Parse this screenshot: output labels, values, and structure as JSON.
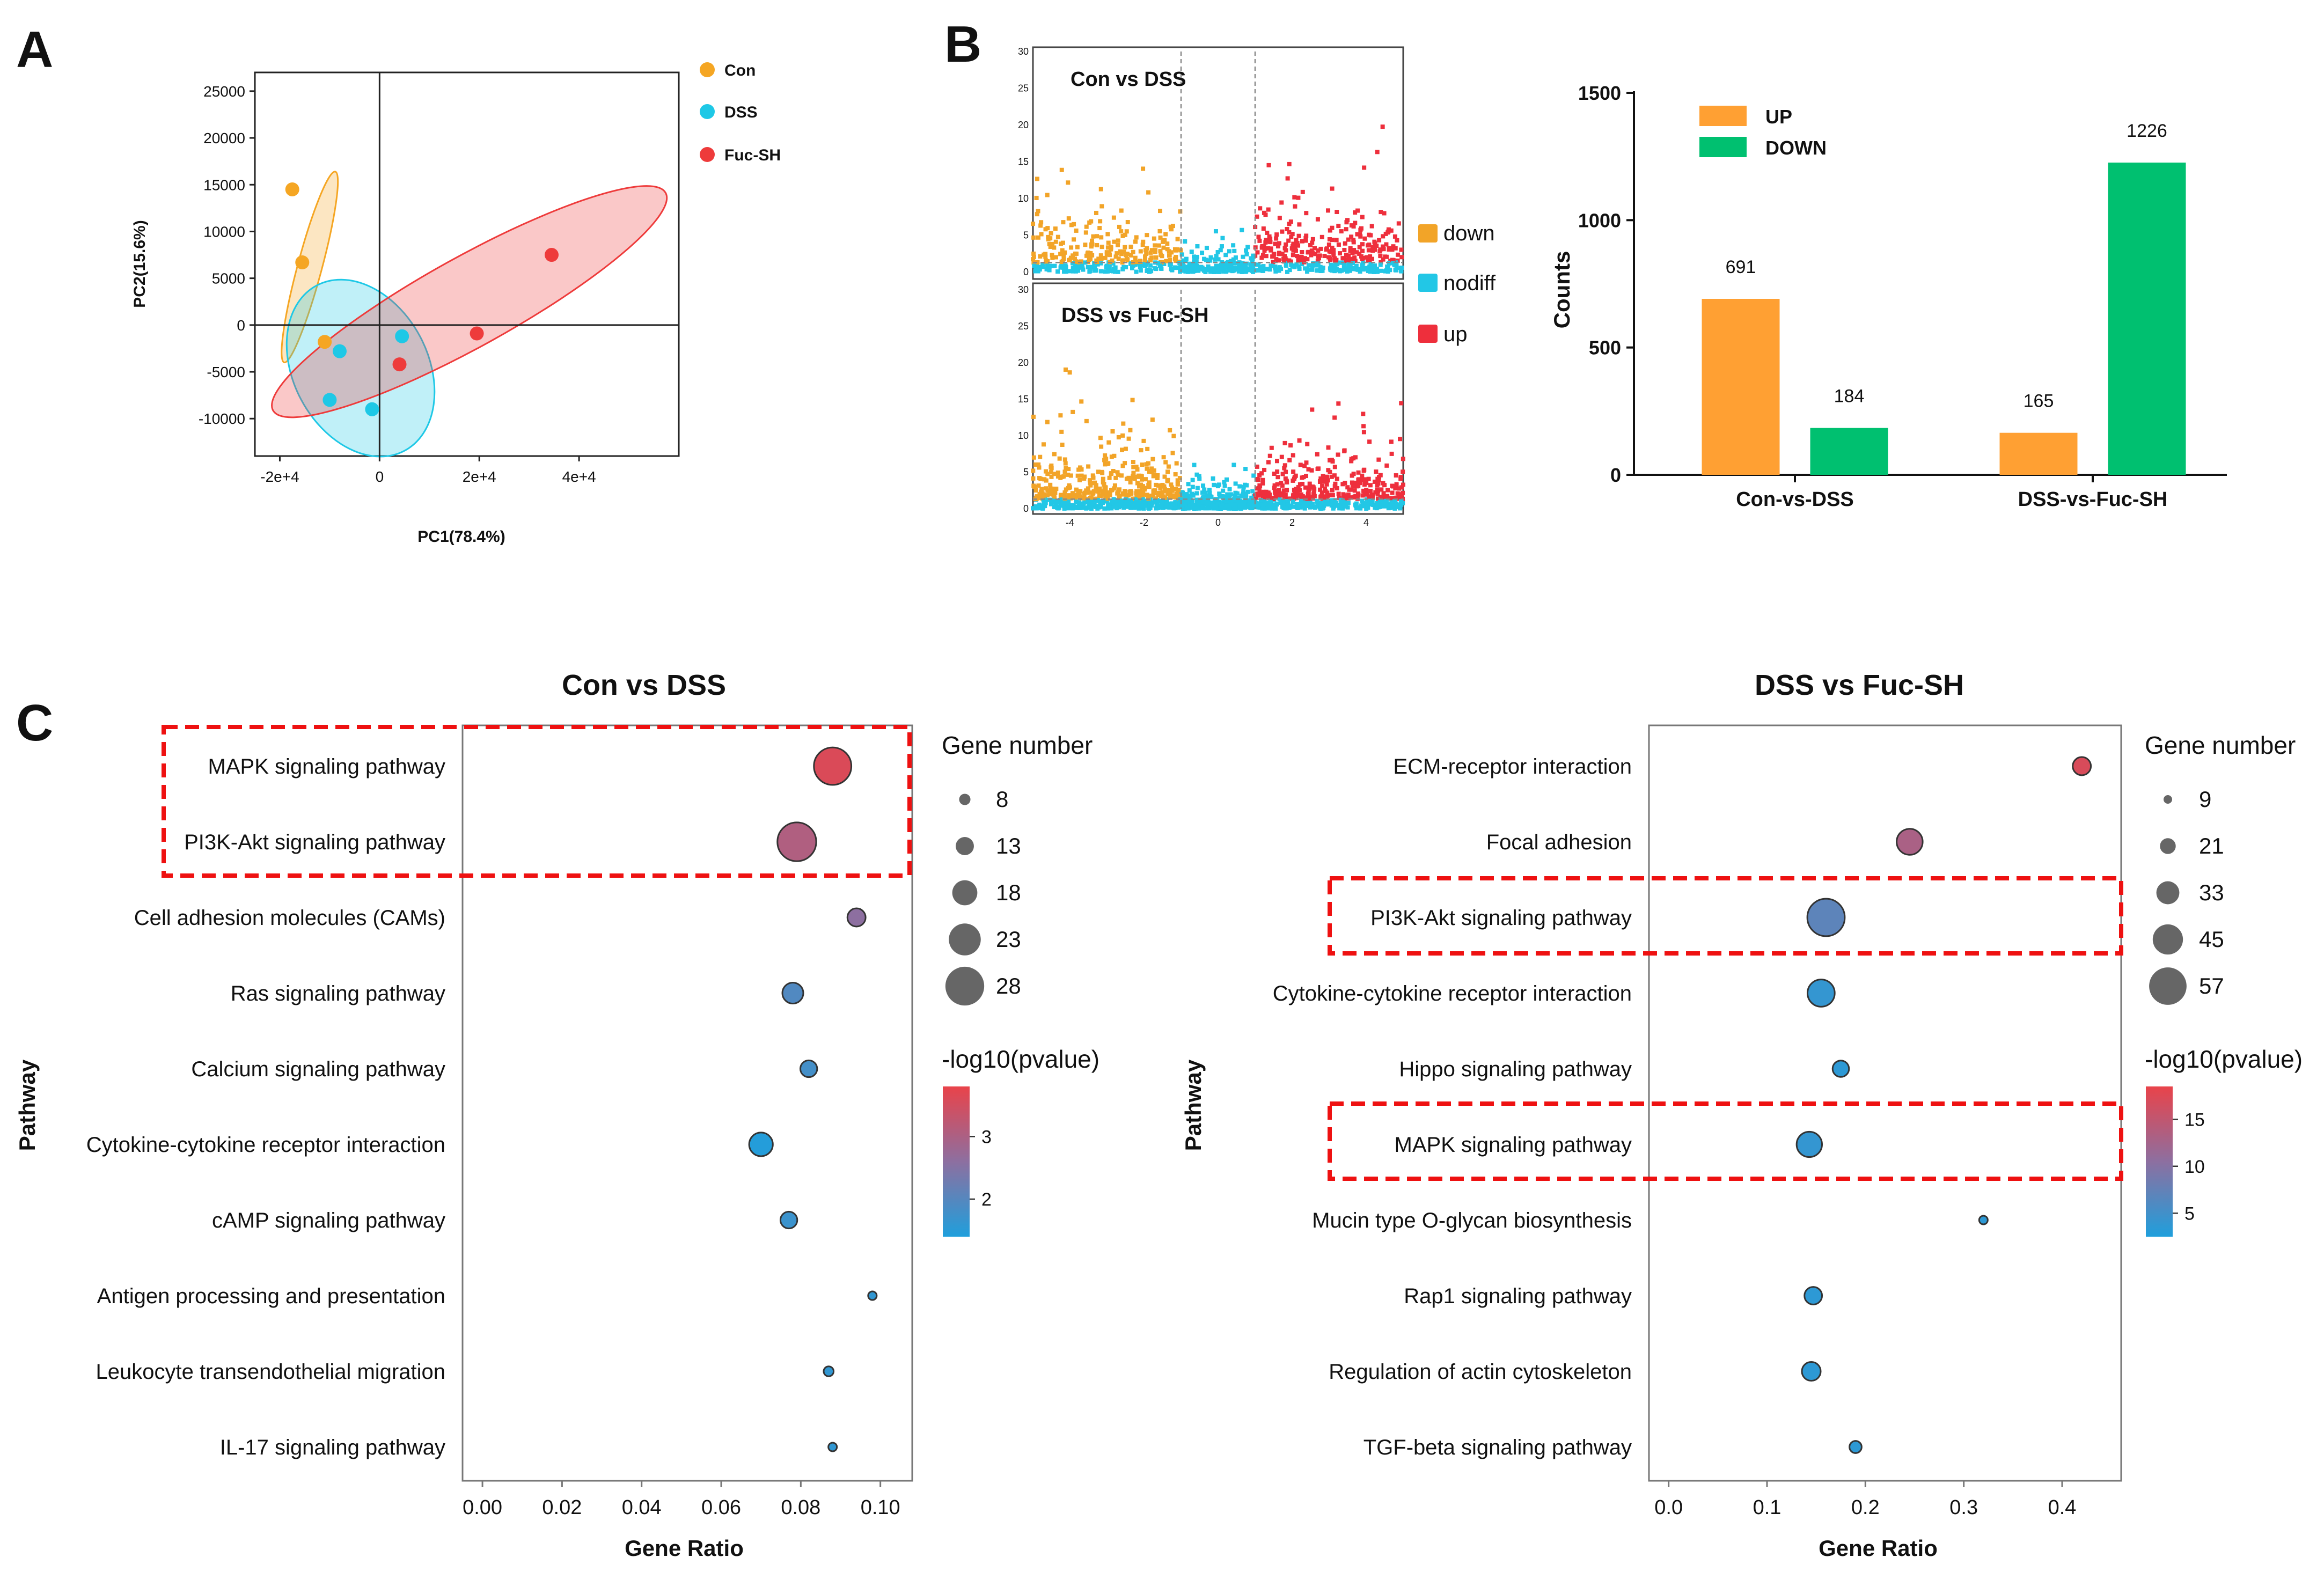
{
  "panel_labels": [
    "A",
    "B",
    "C"
  ],
  "colors": {
    "con": "#f5a623",
    "dss": "#1ec8e6",
    "fuc": "#ee3b3b",
    "up_bar": "#ffa033",
    "down_bar": "#00c070",
    "v_down": "#f2a428",
    "v_nodiff": "#22c7e6",
    "v_up": "#ee2f3c",
    "grad_high": "#e9434a",
    "grad_low": "#1f9fdc",
    "dashed_box": "#ee1111"
  },
  "chart_data": [
    {
      "id": "pca",
      "type": "scatter",
      "xlabel": "PC1(78.4%)",
      "ylabel": "PC2(15.6%)",
      "xlim": [
        -25000,
        60000
      ],
      "ylim": [
        -14000,
        27000
      ],
      "x_ticks": [
        -20000,
        0,
        20000,
        40000
      ],
      "x_tick_labels": [
        "-2e+4",
        "0",
        "2e+4",
        "4e+4"
      ],
      "y_ticks": [
        -10000,
        -5000,
        0,
        5000,
        10000,
        15000,
        20000,
        25000
      ],
      "y_tick_labels": [
        "-10000",
        "-5000",
        "0",
        "5000",
        "10000",
        "15000",
        "20000",
        "25000"
      ],
      "legend": [
        "Con",
        "DSS",
        "Fuc-SH"
      ],
      "series": [
        {
          "name": "Con",
          "points": [
            [
              -17500,
              14500
            ],
            [
              -15500,
              6700
            ],
            [
              -11000,
              -1800
            ]
          ],
          "ellipse": {
            "cx": -14000,
            "cy": 6200,
            "rx": 19800,
            "ry": 1300,
            "angle_deg": -75
          }
        },
        {
          "name": "DSS",
          "points": [
            [
              -8000,
              -2800
            ],
            [
              -10000,
              -8000
            ],
            [
              -1500,
              -9000
            ],
            [
              4500,
              -1200
            ]
          ],
          "ellipse": {
            "cx": -3800,
            "cy": -4600,
            "rx": 13500,
            "ry": 10000,
            "angle_deg": -28
          }
        },
        {
          "name": "Fuc-SH",
          "points": [
            [
              4000,
              -4200
            ],
            [
              19500,
              -900
            ],
            [
              34500,
              7500
            ]
          ],
          "ellipse": {
            "cx": 18000,
            "cy": 2500,
            "rx": 45000,
            "ry": 4800,
            "angle_deg": -29
          }
        }
      ]
    },
    {
      "id": "volcano",
      "type": "scatter",
      "subplots": [
        "Con vs DSS",
        "DSS vs Fuc-SH"
      ],
      "xlim": [
        -5,
        5
      ],
      "ylim": [
        0,
        30
      ],
      "x_ticks": [
        -4,
        -2,
        0,
        2,
        4
      ],
      "y_ticks": [
        0,
        5,
        10,
        15,
        20,
        25,
        30
      ],
      "fc_threshold": [
        -1,
        1
      ],
      "legend": [
        "down",
        "nodiff",
        "up"
      ]
    },
    {
      "id": "deg_counts",
      "type": "bar",
      "categories": [
        "Con-vs-DSS",
        "DSS-vs-Fuc-SH"
      ],
      "series": [
        {
          "name": "UP",
          "values": [
            691,
            165
          ]
        },
        {
          "name": "DOWN",
          "values": [
            184,
            1226
          ]
        }
      ],
      "ylabel": "Counts",
      "ylim": [
        0,
        1500
      ],
      "y_ticks": [
        0,
        500,
        1000,
        1500
      ]
    },
    {
      "id": "kegg_con_dss",
      "type": "scatter",
      "title": "Con vs DSS",
      "xlabel": "Gene Ratio",
      "ylabel": "Pathway",
      "xlim": [
        -0.005,
        0.108
      ],
      "x_ticks": [
        "0.00",
        "0.02",
        "0.04",
        "0.06",
        "0.08",
        "0.10"
      ],
      "pathways": [
        "MAPK signaling pathway",
        "PI3K-Akt signaling pathway",
        "Cell adhesion molecules (CAMs)",
        "Ras signaling pathway",
        "Calcium signaling pathway",
        "Cytokine-cytokine receptor interaction",
        "cAMP signaling pathway",
        "Antigen processing and presentation",
        "Leukocyte transendothelial migration",
        "IL-17 signaling pathway"
      ],
      "gene_ratio": [
        0.088,
        0.079,
        0.094,
        0.078,
        0.082,
        0.07,
        0.077,
        0.098,
        0.087,
        0.088
      ],
      "gene_number": [
        27,
        28,
        13,
        15,
        12,
        17,
        12,
        6,
        7,
        6
      ],
      "neg_log10_p": [
        3.6,
        3.05,
        2.6,
        1.95,
        1.8,
        1.45,
        1.7,
        1.6,
        1.6,
        1.6
      ],
      "highlight": [
        0,
        1
      ],
      "size_legend_title": "Gene number",
      "size_legend": [
        "8",
        "13",
        "18",
        "23",
        "28"
      ],
      "color_legend_title": "-log10(pvalue)",
      "color_ticks": [
        "3",
        "2"
      ],
      "color_range": [
        1.4,
        3.8
      ]
    },
    {
      "id": "kegg_dss_fuc",
      "type": "scatter",
      "title": "DSS vs Fuc-SH",
      "xlabel": "Gene Ratio",
      "ylabel": "Pathway",
      "xlim": [
        -0.02,
        0.46
      ],
      "x_ticks": [
        "0.0",
        "0.1",
        "0.2",
        "0.3",
        "0.4"
      ],
      "pathways": [
        "ECM-receptor interaction",
        "Focal adhesion",
        "PI3K-Akt signaling pathway",
        "Cytokine-cytokine receptor interaction",
        "Hippo signaling pathway",
        "MAPK signaling pathway",
        "Mucin type O-glycan biosynthesis",
        "Rap1 signaling pathway",
        "Regulation of actin cytoskeleton",
        "TGF-beta signaling pathway"
      ],
      "gene_ratio": [
        0.42,
        0.245,
        0.16,
        0.155,
        0.175,
        0.143,
        0.32,
        0.147,
        0.145,
        0.19
      ],
      "gene_number": [
        25,
        38,
        57,
        40,
        22,
        37,
        9,
        24,
        26,
        15
      ],
      "neg_log10_p": [
        17,
        13,
        7,
        4,
        3.5,
        4,
        3.5,
        3.5,
        3.5,
        3.5
      ],
      "highlight": [
        2,
        5
      ],
      "size_legend_title": "Gene number",
      "size_legend": [
        "9",
        "21",
        "33",
        "45",
        "57"
      ],
      "color_legend_title": "-log10(pvalue)",
      "color_ticks": [
        "15",
        "10",
        "5"
      ],
      "color_range": [
        2.5,
        18.5
      ]
    }
  ]
}
